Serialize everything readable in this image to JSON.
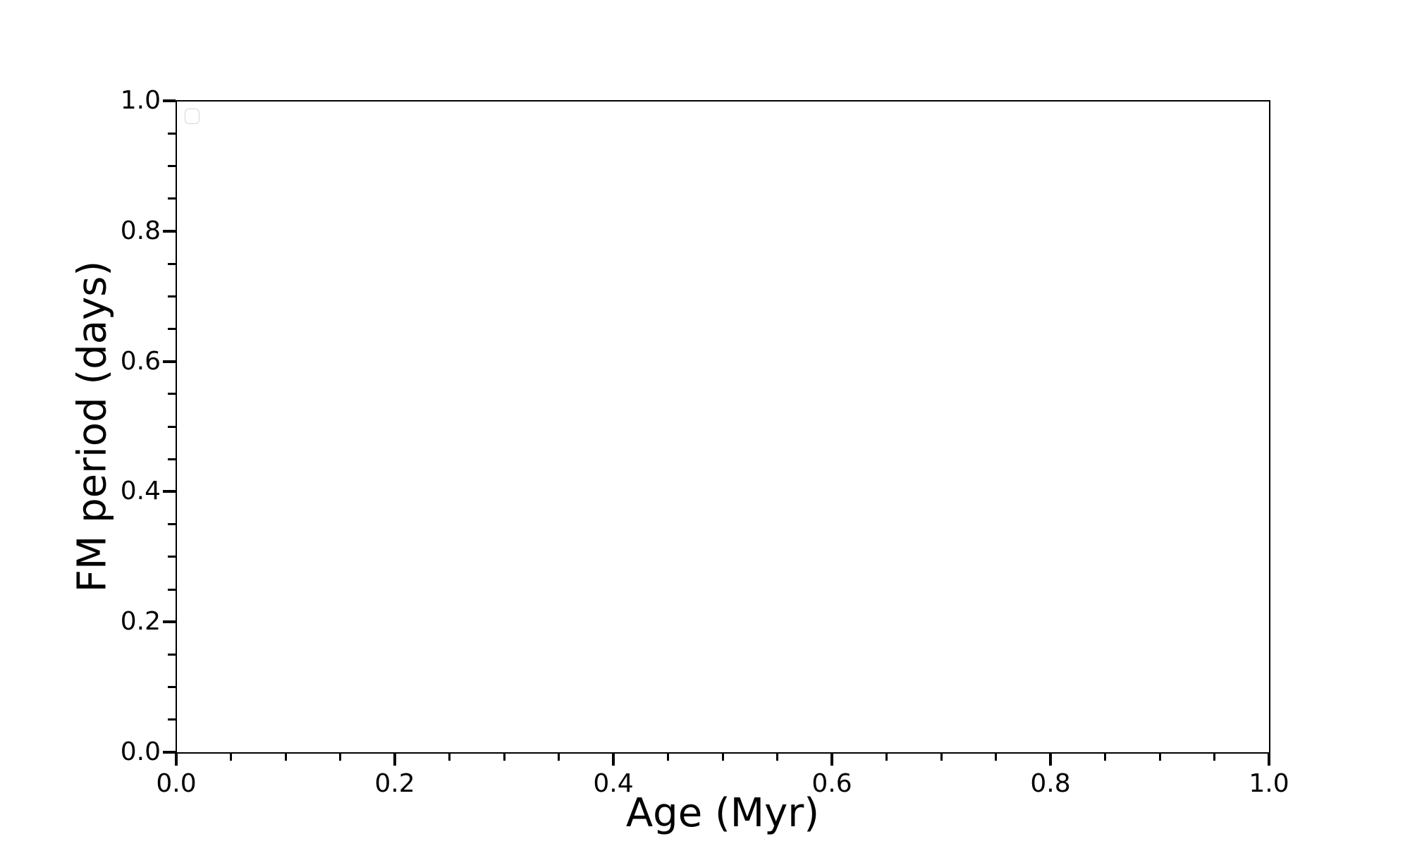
{
  "figure": {
    "background_color": "#ffffff",
    "axis_color": "#000000",
    "legend_border_color": "#d5d5d5"
  },
  "chart_data": {
    "type": "scatter",
    "title": "",
    "xlabel": "Age (Myr)",
    "ylabel": "FM period (days)",
    "xlim": [
      0.0,
      1.0
    ],
    "ylim": [
      0.0,
      1.0
    ],
    "x_major_ticks": [
      0.0,
      0.2,
      0.4,
      0.6,
      0.8,
      1.0
    ],
    "x_tick_labels": [
      "0.0",
      "0.2",
      "0.4",
      "0.6",
      "0.8",
      "1.0"
    ],
    "y_major_ticks": [
      0.0,
      0.2,
      0.4,
      0.6,
      0.8,
      1.0
    ],
    "y_tick_labels": [
      "0.0",
      "0.2",
      "0.4",
      "0.6",
      "0.8",
      "1.0"
    ],
    "minor_tick_step": 0.05,
    "grid": false,
    "series": [],
    "legend": {
      "visible": true,
      "position": "upper left",
      "entries": []
    }
  }
}
